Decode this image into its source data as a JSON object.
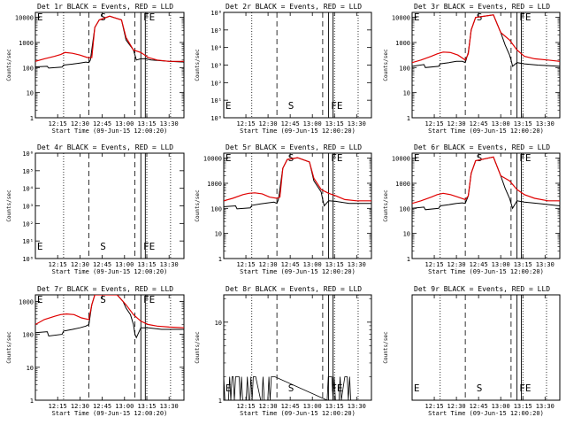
{
  "chart_data": {
    "type": "line",
    "xlabel": "Start Time (09-Jun-15 12:00:20)",
    "ylabel": "Counts/sec",
    "x_ticks": [
      "12:15",
      "12:30",
      "12:45",
      "13:00",
      "13:15",
      "13:30"
    ],
    "x_tick_values_min": [
      15,
      30,
      45,
      60,
      75,
      90
    ],
    "xlim_min": [
      0,
      100
    ],
    "legend": {
      "events": "BLACK = Events",
      "lld": "RED = LLD"
    },
    "colors": {
      "events": "#000000",
      "lld": "#e00000"
    },
    "markers_min": {
      "E": 0.5,
      "S": 43,
      "F": 72,
      "E2": 76
    },
    "dotted_lines_min": [
      19,
      75,
      91
    ],
    "dashed_lines_min": [
      36,
      67
    ],
    "solid_lines_min": [
      71,
      74
    ],
    "panels": [
      {
        "id": "p1",
        "title": "Det 1r BLACK = Events, RED = LLD",
        "scale": "log",
        "yticks": [
          "1",
          "10",
          "100",
          "1000",
          "10000"
        ],
        "ylim_exp": [
          0,
          4.2
        ],
        "labels": [
          "E",
          "S",
          "F",
          "E"
        ],
        "has_data": true,
        "events": [
          [
            0,
            2.03
          ],
          [
            8,
            2.05
          ],
          [
            9,
            1.98
          ],
          [
            18,
            2.02
          ],
          [
            19,
            2.1
          ],
          [
            25,
            2.14
          ],
          [
            30,
            2.18
          ],
          [
            34,
            2.22
          ],
          [
            36,
            2.2
          ],
          [
            37,
            2.3
          ],
          [
            40,
            3.6
          ],
          [
            43,
            3.9
          ],
          [
            50,
            4.05
          ],
          [
            58,
            3.9
          ],
          [
            61,
            3.1
          ],
          [
            66,
            2.7
          ],
          [
            67,
            2.5
          ],
          [
            68,
            2.3
          ],
          [
            71,
            2.35
          ],
          [
            74,
            2.35
          ],
          [
            78,
            2.3
          ],
          [
            90,
            2.25
          ],
          [
            100,
            2.22
          ]
        ],
        "lld": [
          [
            0,
            2.25
          ],
          [
            6,
            2.35
          ],
          [
            13,
            2.45
          ],
          [
            17,
            2.52
          ],
          [
            20,
            2.6
          ],
          [
            25,
            2.57
          ],
          [
            30,
            2.5
          ],
          [
            35,
            2.4
          ],
          [
            38,
            2.4
          ],
          [
            40,
            3.6
          ],
          [
            43,
            3.9
          ],
          [
            50,
            4.05
          ],
          [
            58,
            3.9
          ],
          [
            61,
            3.2
          ],
          [
            66,
            2.7
          ],
          [
            71,
            2.6
          ],
          [
            76,
            2.4
          ],
          [
            82,
            2.3
          ],
          [
            90,
            2.25
          ],
          [
            100,
            2.25
          ]
        ]
      },
      {
        "id": "p2",
        "title": "Det 2r BLACK = Events, RED = LLD",
        "scale": "exp",
        "yticks": [
          "10⁰",
          "10¹",
          "10²",
          "10³",
          "10⁴",
          "10⁵",
          "10⁶"
        ],
        "ylim_exp": [
          0,
          6
        ],
        "labels": [
          "E",
          "S",
          "F",
          "E"
        ],
        "has_data": false,
        "events": [],
        "lld": []
      },
      {
        "id": "p3",
        "title": "Det 3r BLACK = Events, RED = LLD",
        "scale": "log",
        "yticks": [
          "1",
          "10",
          "100",
          "1000",
          "10000"
        ],
        "ylim_exp": [
          0,
          4.2
        ],
        "labels": [
          "E",
          "S",
          "F",
          "E"
        ],
        "has_data": true,
        "events": [
          [
            0,
            2.05
          ],
          [
            8,
            2.12
          ],
          [
            9,
            2.0
          ],
          [
            18,
            2.05
          ],
          [
            19,
            2.15
          ],
          [
            25,
            2.2
          ],
          [
            30,
            2.25
          ],
          [
            34,
            2.25
          ],
          [
            36,
            2.2
          ],
          [
            38,
            2.6
          ],
          [
            40,
            3.5
          ],
          [
            43,
            4.0
          ],
          [
            55,
            4.1
          ],
          [
            60,
            3.4
          ],
          [
            63,
            2.9
          ],
          [
            66,
            2.5
          ],
          [
            67,
            2.3
          ],
          [
            68,
            2.05
          ],
          [
            71,
            2.2
          ],
          [
            76,
            2.15
          ],
          [
            85,
            2.1
          ],
          [
            100,
            2.05
          ]
        ],
        "lld": [
          [
            0,
            2.2
          ],
          [
            6,
            2.3
          ],
          [
            13,
            2.45
          ],
          [
            17,
            2.55
          ],
          [
            21,
            2.62
          ],
          [
            26,
            2.6
          ],
          [
            31,
            2.5
          ],
          [
            36,
            2.3
          ],
          [
            38,
            2.55
          ],
          [
            40,
            3.5
          ],
          [
            43,
            4.0
          ],
          [
            55,
            4.1
          ],
          [
            60,
            3.4
          ],
          [
            66,
            3.1
          ],
          [
            71,
            2.7
          ],
          [
            76,
            2.45
          ],
          [
            83,
            2.35
          ],
          [
            92,
            2.3
          ],
          [
            100,
            2.25
          ]
        ]
      },
      {
        "id": "p4",
        "title": "Det 4r BLACK = Events, RED = LLD",
        "scale": "exp",
        "yticks": [
          "10⁰",
          "10¹",
          "10²",
          "10³",
          "10⁴",
          "10⁵",
          "10⁶"
        ],
        "ylim_exp": [
          0,
          6
        ],
        "labels": [
          "E",
          "S",
          "F",
          "E"
        ],
        "has_data": false,
        "events": [],
        "lld": []
      },
      {
        "id": "p5",
        "title": "Det 5r BLACK = Events, RED = LLD",
        "scale": "log",
        "yticks": [
          "1",
          "10",
          "100",
          "1000",
          "10000"
        ],
        "ylim_exp": [
          0,
          4.2
        ],
        "labels": [
          "E",
          "S",
          "F",
          "E"
        ],
        "has_data": true,
        "events": [
          [
            0,
            2.07
          ],
          [
            8,
            2.1
          ],
          [
            9,
            1.98
          ],
          [
            18,
            2.02
          ],
          [
            19,
            2.12
          ],
          [
            25,
            2.18
          ],
          [
            30,
            2.22
          ],
          [
            34,
            2.25
          ],
          [
            36,
            2.2
          ],
          [
            37,
            2.35
          ],
          [
            40,
            3.6
          ],
          [
            43,
            3.95
          ],
          [
            50,
            4.02
          ],
          [
            58,
            3.85
          ],
          [
            61,
            3.1
          ],
          [
            66,
            2.65
          ],
          [
            67,
            2.35
          ],
          [
            68,
            2.1
          ],
          [
            71,
            2.3
          ],
          [
            76,
            2.28
          ],
          [
            85,
            2.2
          ],
          [
            100,
            2.2
          ]
        ],
        "lld": [
          [
            0,
            2.3
          ],
          [
            6,
            2.4
          ],
          [
            13,
            2.55
          ],
          [
            17,
            2.6
          ],
          [
            21,
            2.62
          ],
          [
            26,
            2.58
          ],
          [
            31,
            2.45
          ],
          [
            36,
            2.4
          ],
          [
            38,
            2.45
          ],
          [
            40,
            3.6
          ],
          [
            43,
            3.95
          ],
          [
            50,
            4.02
          ],
          [
            58,
            3.85
          ],
          [
            61,
            3.2
          ],
          [
            66,
            2.75
          ],
          [
            71,
            2.6
          ],
          [
            76,
            2.5
          ],
          [
            82,
            2.35
          ],
          [
            90,
            2.3
          ],
          [
            100,
            2.3
          ]
        ]
      },
      {
        "id": "p6",
        "title": "Det 6r BLACK = Events, RED = LLD",
        "scale": "log",
        "yticks": [
          "1",
          "10",
          "100",
          "1000",
          "10000"
        ],
        "ylim_exp": [
          0,
          4.2
        ],
        "labels": [
          "E",
          "S",
          "F",
          "E"
        ],
        "has_data": true,
        "events": [
          [
            0,
            2.0
          ],
          [
            8,
            2.05
          ],
          [
            9,
            1.95
          ],
          [
            18,
            2.0
          ],
          [
            19,
            2.1
          ],
          [
            25,
            2.15
          ],
          [
            30,
            2.2
          ],
          [
            34,
            2.22
          ],
          [
            36,
            2.2
          ],
          [
            38,
            2.5
          ],
          [
            40,
            3.4
          ],
          [
            43,
            3.9
          ],
          [
            55,
            4.05
          ],
          [
            60,
            3.3
          ],
          [
            63,
            2.8
          ],
          [
            66,
            2.4
          ],
          [
            67,
            2.2
          ],
          [
            68,
            2.0
          ],
          [
            71,
            2.3
          ],
          [
            76,
            2.25
          ],
          [
            85,
            2.2
          ],
          [
            100,
            2.1
          ]
        ],
        "lld": [
          [
            0,
            2.2
          ],
          [
            6,
            2.3
          ],
          [
            13,
            2.45
          ],
          [
            17,
            2.55
          ],
          [
            21,
            2.6
          ],
          [
            26,
            2.55
          ],
          [
            31,
            2.45
          ],
          [
            36,
            2.35
          ],
          [
            38,
            2.5
          ],
          [
            40,
            3.4
          ],
          [
            43,
            3.9
          ],
          [
            55,
            4.05
          ],
          [
            60,
            3.3
          ],
          [
            66,
            3.1
          ],
          [
            71,
            2.75
          ],
          [
            76,
            2.55
          ],
          [
            83,
            2.4
          ],
          [
            92,
            2.3
          ],
          [
            100,
            2.3
          ]
        ]
      },
      {
        "id": "p7",
        "title": "Det 7r BLACK = Events, RED = LLD",
        "scale": "log",
        "yticks": [
          "1",
          "10",
          "100",
          "1000"
        ],
        "ylim_exp": [
          0,
          3.2
        ],
        "labels": [
          "E",
          "S",
          "F",
          "E"
        ],
        "has_data": true,
        "events": [
          [
            0,
            2.05
          ],
          [
            8,
            2.08
          ],
          [
            9,
            1.95
          ],
          [
            18,
            2.0
          ],
          [
            19,
            2.1
          ],
          [
            25,
            2.15
          ],
          [
            30,
            2.2
          ],
          [
            34,
            2.25
          ],
          [
            36,
            2.3
          ],
          [
            38,
            2.9
          ],
          [
            40,
            3.2
          ],
          [
            55,
            3.2
          ],
          [
            59,
            3.0
          ],
          [
            61,
            2.8
          ],
          [
            64,
            2.6
          ],
          [
            66,
            2.3
          ],
          [
            67,
            2.0
          ],
          [
            68,
            1.9
          ],
          [
            71,
            2.2
          ],
          [
            76,
            2.2
          ],
          [
            85,
            2.15
          ],
          [
            100,
            2.15
          ]
        ],
        "lld": [
          [
            0,
            2.3
          ],
          [
            6,
            2.45
          ],
          [
            13,
            2.55
          ],
          [
            17,
            2.6
          ],
          [
            21,
            2.62
          ],
          [
            26,
            2.6
          ],
          [
            31,
            2.5
          ],
          [
            36,
            2.45
          ],
          [
            38,
            2.9
          ],
          [
            40,
            3.2
          ],
          [
            55,
            3.2
          ],
          [
            59,
            3.0
          ],
          [
            61,
            2.9
          ],
          [
            66,
            2.6
          ],
          [
            71,
            2.4
          ],
          [
            76,
            2.3
          ],
          [
            82,
            2.25
          ],
          [
            90,
            2.22
          ],
          [
            100,
            2.2
          ]
        ]
      },
      {
        "id": "p8",
        "title": "Det 8r BLACK = Events, RED = LLD",
        "scale": "log",
        "yticks": [
          "1",
          "10"
        ],
        "ylim_exp": [
          0,
          1.35
        ],
        "labels": [
          "E",
          "S",
          "F",
          "E"
        ],
        "has_data": true,
        "noise": true,
        "events": [],
        "lld": []
      },
      {
        "id": "p9",
        "title": "Det 9r BLACK = Events, RED = LLD",
        "scale": "none",
        "yticks": [],
        "ylim_exp": [
          0,
          1
        ],
        "labels": [
          "E",
          "S",
          "F",
          "E"
        ],
        "has_data": false,
        "events": [],
        "lld": []
      }
    ]
  }
}
